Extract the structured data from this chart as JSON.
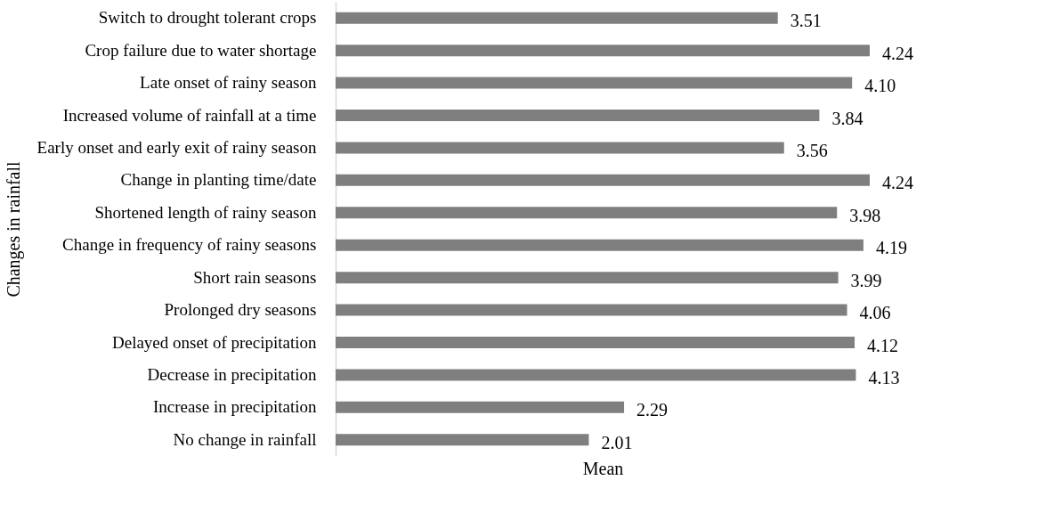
{
  "chart_data": {
    "type": "bar",
    "orientation": "horizontal",
    "ylabel": "Changes in rainfall",
    "xlabel": "Mean",
    "categories": [
      "Switch to drought tolerant crops",
      "Crop failure due to water shortage",
      "Late onset of rainy season",
      "Increased volume of rainfall at a time",
      "Early onset and early exit of rainy season",
      "Change in planting time/date",
      "Shortened length of rainy season",
      "Change in frequency of rainy seasons",
      "Short rain seasons",
      "Prolonged dry seasons",
      "Delayed onset of precipitation",
      "Decrease in precipitation",
      "Increase in precipitation",
      "No change in rainfall"
    ],
    "values": [
      3.51,
      4.24,
      4.1,
      3.84,
      3.56,
      4.24,
      3.98,
      4.19,
      3.99,
      4.06,
      4.12,
      4.13,
      2.29,
      2.01
    ],
    "value_labels": [
      "3.51",
      "4.24",
      "4.10",
      "3.84",
      "3.56",
      "4.24",
      "3.98",
      "4.19",
      "3.99",
      "4.06",
      "4.12",
      "4.13",
      "2.29",
      "2.01"
    ],
    "color": "#7f7f7f",
    "tick_labels": "y",
    "grid": false
  }
}
